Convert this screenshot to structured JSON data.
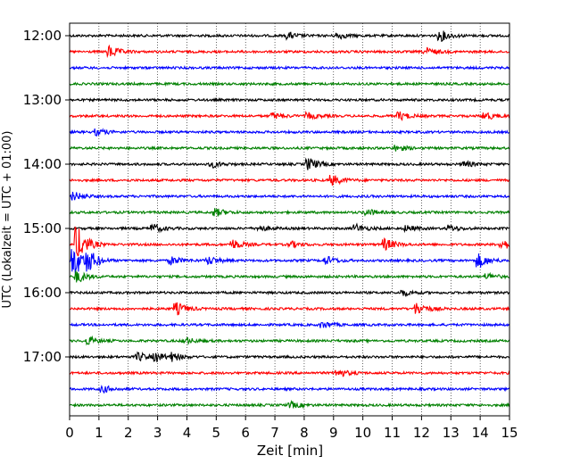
{
  "chart_data": {
    "type": "line",
    "title": "",
    "xlabel": "Zeit  [min]",
    "ylabel": "UTC (Lokalzeit = UTC + 01:00)",
    "xlim": [
      0,
      15
    ],
    "x_ticks": [
      "0",
      "1",
      "2",
      "3",
      "4",
      "5",
      "6",
      "7",
      "8",
      "9",
      "10",
      "11",
      "12",
      "13",
      "14",
      "15"
    ],
    "y_ticks": [
      "12:00",
      "13:00",
      "14:00",
      "15:00",
      "16:00",
      "17:00"
    ],
    "grid": "vertical-dotted",
    "trace_colors": [
      "#000000",
      "#ff0000",
      "#0000ff",
      "#008000"
    ],
    "traces": [
      {
        "start": "12:00",
        "events": [
          [
            7.5,
            3
          ],
          [
            9.2,
            3
          ],
          [
            12.7,
            5
          ]
        ]
      },
      {
        "start": "12:15",
        "events": [
          [
            1.4,
            6
          ],
          [
            12.2,
            4
          ]
        ]
      },
      {
        "start": "12:30",
        "events": []
      },
      {
        "start": "12:45",
        "events": []
      },
      {
        "start": "13:00",
        "events": []
      },
      {
        "start": "13:15",
        "events": [
          [
            7.0,
            3
          ],
          [
            8.2,
            3
          ],
          [
            11.3,
            4
          ],
          [
            14.2,
            4
          ]
        ]
      },
      {
        "start": "13:30",
        "events": [
          [
            1.0,
            3
          ]
        ]
      },
      {
        "start": "13:45",
        "events": [
          [
            11.2,
            3
          ]
        ]
      },
      {
        "start": "14:00",
        "events": [
          [
            4.9,
            3
          ],
          [
            8.2,
            6
          ],
          [
            13.5,
            3
          ]
        ]
      },
      {
        "start": "14:15",
        "events": [
          [
            9.0,
            5
          ]
        ]
      },
      {
        "start": "14:30",
        "events": [
          [
            0.2,
            4
          ]
        ]
      },
      {
        "start": "14:45",
        "events": [
          [
            5.0,
            4
          ],
          [
            10.2,
            3
          ]
        ]
      },
      {
        "start": "15:00",
        "events": [
          [
            2.9,
            4
          ],
          [
            6.5,
            3
          ],
          [
            9.8,
            4
          ],
          [
            11.5,
            3
          ],
          [
            13.0,
            3
          ]
        ]
      },
      {
        "start": "15:15",
        "events": [
          [
            0.3,
            18
          ],
          [
            5.6,
            5
          ],
          [
            7.6,
            3
          ],
          [
            10.8,
            6
          ],
          [
            14.8,
            5
          ]
        ]
      },
      {
        "start": "15:30",
        "events": [
          [
            0.2,
            16
          ],
          [
            0.7,
            8
          ],
          [
            3.5,
            4
          ],
          [
            4.8,
            4
          ],
          [
            8.8,
            4
          ],
          [
            14.0,
            7
          ]
        ]
      },
      {
        "start": "15:45",
        "events": [
          [
            0.3,
            6
          ],
          [
            14.3,
            3
          ]
        ]
      },
      {
        "start": "16:00",
        "events": [
          [
            11.4,
            3
          ]
        ]
      },
      {
        "start": "16:15",
        "events": [
          [
            3.7,
            6
          ],
          [
            11.9,
            6
          ]
        ]
      },
      {
        "start": "16:30",
        "events": [
          [
            8.7,
            3
          ]
        ]
      },
      {
        "start": "16:45",
        "events": [
          [
            0.7,
            4
          ],
          [
            4.0,
            3
          ]
        ]
      },
      {
        "start": "17:00",
        "events": [
          [
            2.4,
            4
          ],
          [
            3.0,
            4
          ],
          [
            3.5,
            4
          ]
        ]
      },
      {
        "start": "17:15",
        "events": [
          [
            9.2,
            4
          ]
        ]
      },
      {
        "start": "17:30",
        "events": [
          [
            1.2,
            3
          ]
        ]
      },
      {
        "start": "17:45",
        "events": [
          [
            7.6,
            3
          ]
        ]
      }
    ]
  }
}
